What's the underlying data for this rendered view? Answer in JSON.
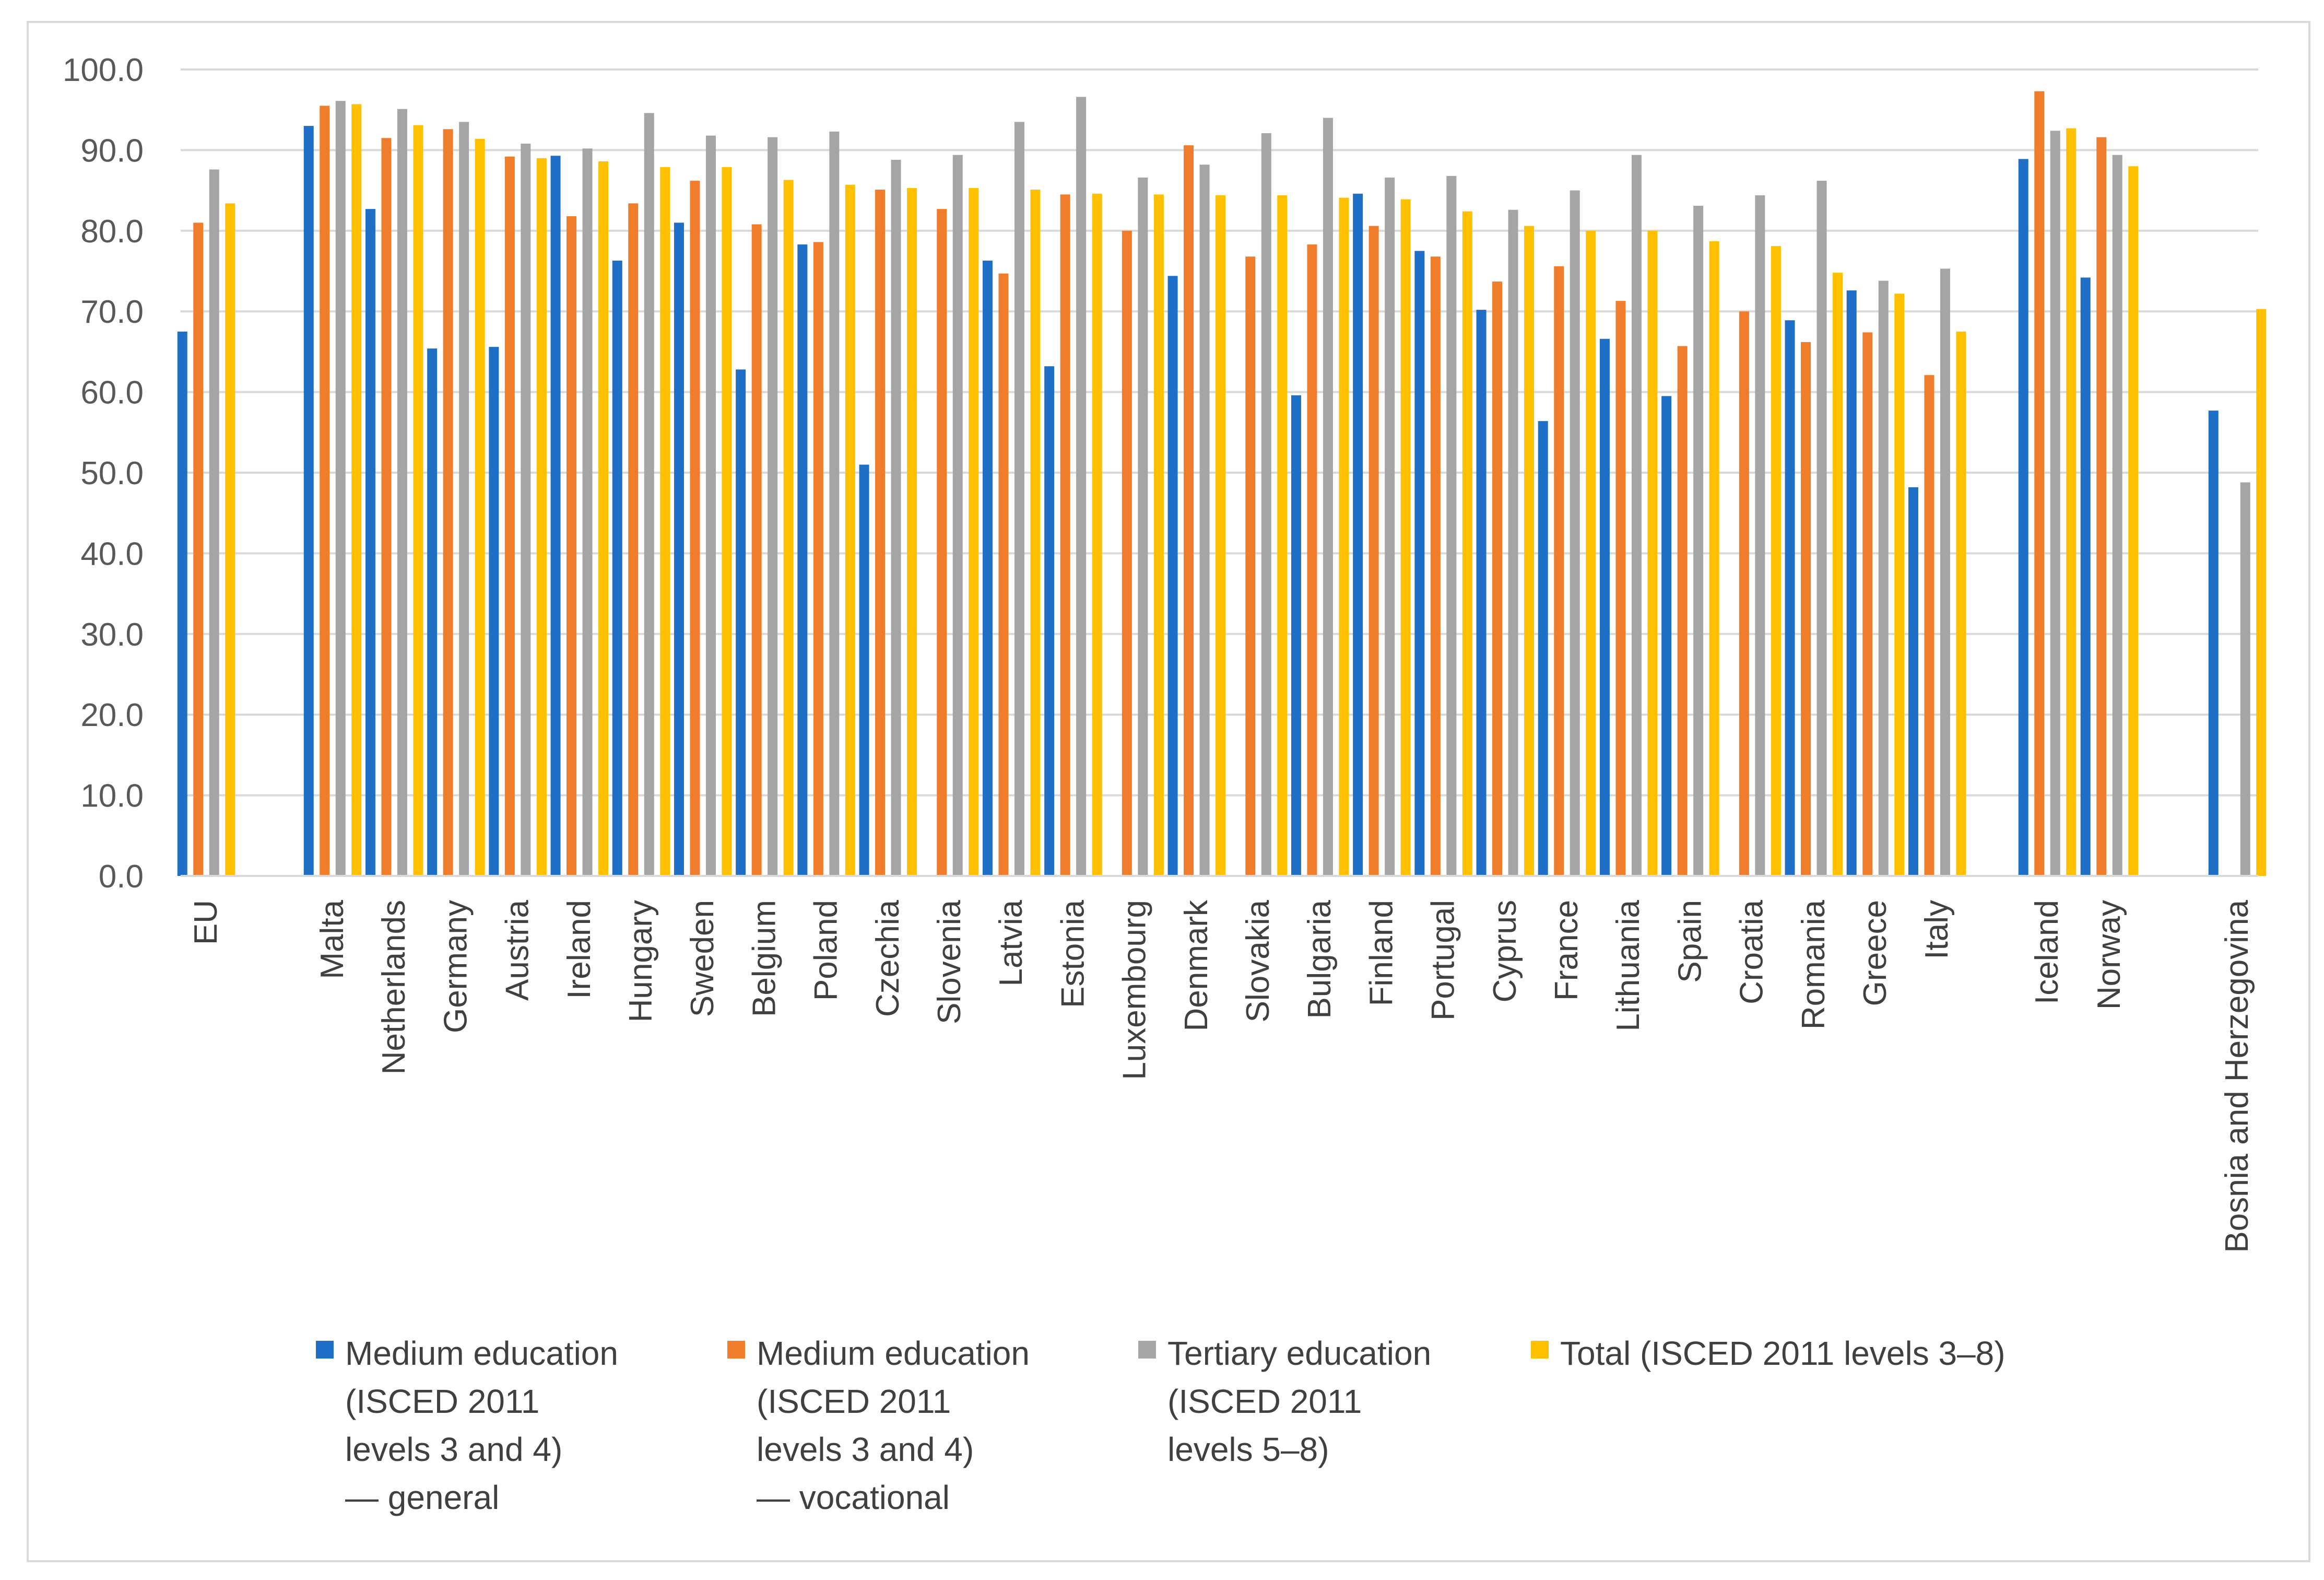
{
  "chart_data": {
    "type": "bar",
    "title": "",
    "xlabel": "",
    "ylabel": "",
    "ylim": [
      0,
      100
    ],
    "yticks": [
      "0.0",
      "10.0",
      "20.0",
      "30.0",
      "40.0",
      "50.0",
      "60.0",
      "70.0",
      "80.0",
      "90.0",
      "100.0"
    ],
    "grid": true,
    "legend_position": "bottom",
    "categories": [
      "EU",
      "Malta",
      "Netherlands",
      "Germany",
      "Austria",
      "Ireland",
      "Hungary",
      "Sweden",
      "Belgium",
      "Poland",
      "Czechia",
      "Slovenia",
      "Latvia",
      "Estonia",
      "Luxembourg",
      "Denmark",
      "Slovakia",
      "Bulgaria",
      "Finland",
      "Portugal",
      "Cyprus",
      "France",
      "Lithuania",
      "Spain",
      "Croatia",
      "Romania",
      "Greece",
      "Italy",
      "Iceland",
      "Norway",
      "Bosnia and Herzegovina"
    ],
    "series": [
      {
        "name": "Medium education\n(ISCED 2011\nlevels 3 and 4)\n — general",
        "color": "#1f6fc6",
        "values": [
          67.5,
          93.0,
          82.7,
          65.4,
          65.6,
          89.3,
          76.3,
          81.0,
          62.8,
          78.3,
          51.0,
          null,
          76.3,
          63.2,
          null,
          74.4,
          null,
          59.6,
          84.6,
          77.5,
          70.2,
          56.4,
          66.6,
          59.5,
          null,
          68.9,
          72.6,
          48.2,
          88.9,
          74.2,
          57.7
        ]
      },
      {
        "name": "Medium education\n(ISCED 2011\nlevels 3 and 4)\n— vocational",
        "color": "#f07d2c",
        "values": [
          81.0,
          95.5,
          91.5,
          92.6,
          89.2,
          81.8,
          83.4,
          86.2,
          80.8,
          78.6,
          85.1,
          82.7,
          74.7,
          84.5,
          80.0,
          90.6,
          76.8,
          78.3,
          80.6,
          76.8,
          73.7,
          75.6,
          71.3,
          65.7,
          70.0,
          66.2,
          67.4,
          62.1,
          97.3,
          91.6,
          null
        ]
      },
      {
        "name": "Tertiary education\n(ISCED 2011\nlevels 5–8)",
        "color": "#a5a5a5",
        "values": [
          87.6,
          96.1,
          95.1,
          93.5,
          90.8,
          90.2,
          94.6,
          91.8,
          91.6,
          92.3,
          88.8,
          89.4,
          93.5,
          96.6,
          86.6,
          88.2,
          92.1,
          94.0,
          86.6,
          86.8,
          82.6,
          85.0,
          89.4,
          83.1,
          84.4,
          86.2,
          73.8,
          75.3,
          92.4,
          89.4,
          48.8
        ]
      },
      {
        "name": "Total (ISCED 2011 levels 3–8)",
        "color": "#ffc000",
        "values": [
          83.4,
          95.7,
          93.1,
          91.4,
          89.0,
          88.6,
          87.9,
          87.9,
          86.3,
          85.7,
          85.3,
          85.3,
          85.1,
          84.6,
          84.5,
          84.4,
          84.4,
          84.1,
          83.9,
          82.4,
          80.6,
          80.0,
          80.0,
          78.7,
          78.1,
          74.8,
          72.2,
          67.5,
          92.7,
          88.0,
          70.3
        ]
      }
    ]
  }
}
